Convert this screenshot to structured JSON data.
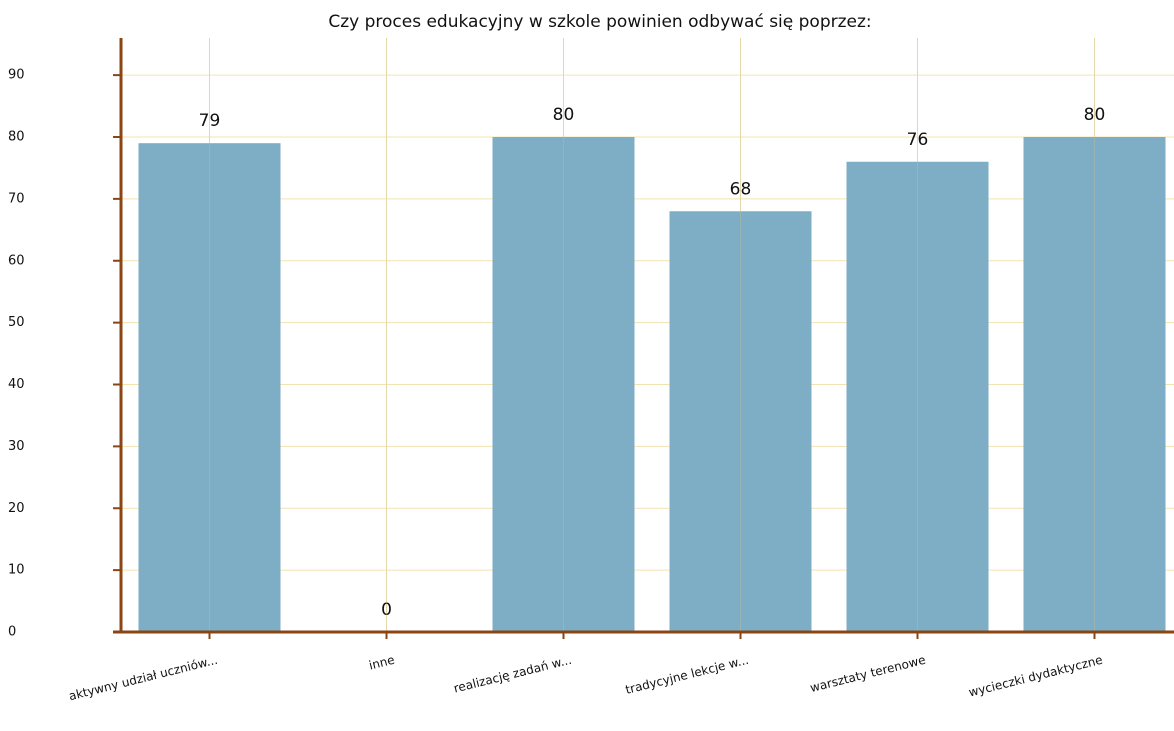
{
  "chart_data": {
    "type": "bar",
    "title": "Czy proces edukacyjny w szkole powinien odbywać się  poprzez:",
    "categories": [
      "aktywny udział uczniów...",
      "inne",
      "realizację zadań w...",
      "tradycyjne lekcje w...",
      "warsztaty terenowe",
      "wycieczki dydaktyczne"
    ],
    "values": [
      79,
      0,
      80,
      68,
      76,
      80
    ],
    "color": "#7aabc4",
    "ylim": [
      0,
      96
    ],
    "yticks": [
      0,
      10,
      20,
      30,
      40,
      50,
      60,
      70,
      80,
      90
    ],
    "grid": true
  }
}
